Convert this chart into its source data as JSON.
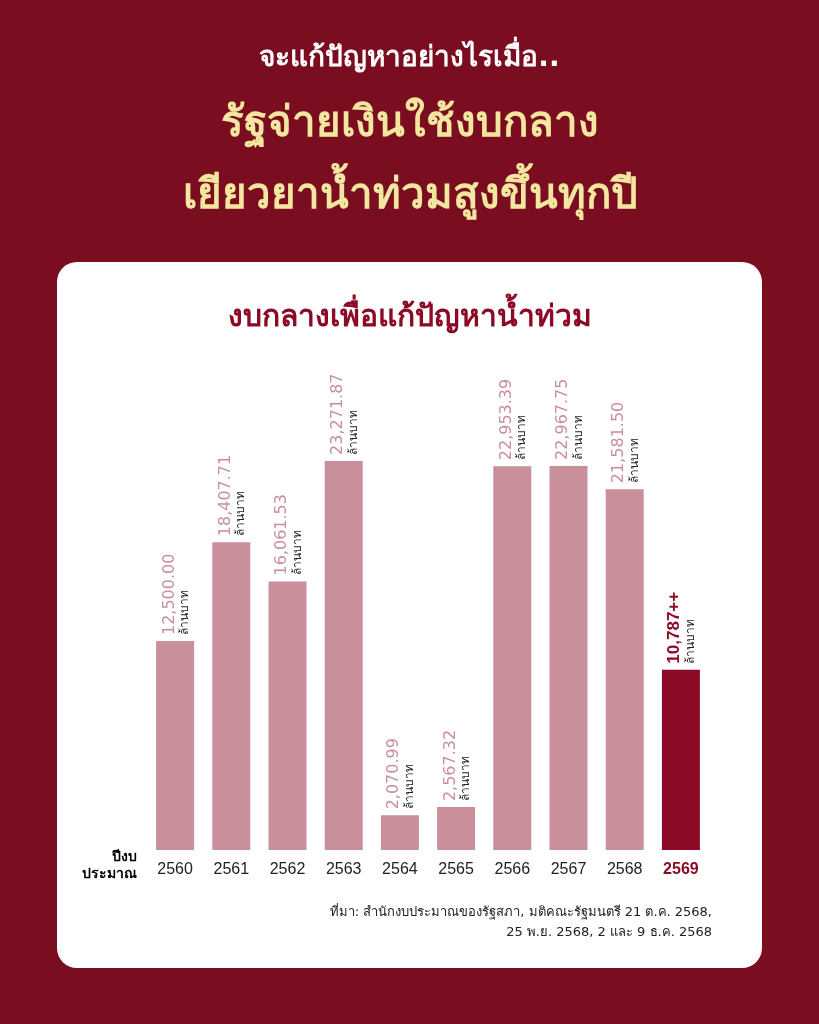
{
  "chart_data": {
    "type": "bar",
    "title": "จะแก้ปัญหาอย่างไรเมื่อ..",
    "subtitle": "รัฐจ่ายเงินใช้งบกลาง เยียวยาน้ำท่วมสูงขึ้นทุกปี",
    "xlabel": "ปีงบ ประมาณ",
    "annotations": [
      "งบกลางเพื่อแก้ปัญหาน้ำท่วม",
      "ที่มา: สำนักงบประมาณของรัฐสภา, มติคณะรัฐมนตรี 21 ต.ค. 2568, 25 พ.ย. 2568, 2 และ 9 ธ.ค. 2568"
    ],
    "categories": [
      "2560",
      "2561",
      "2562",
      "2563",
      "2564",
      "2565",
      "2566",
      "2567",
      "2568",
      "2569"
    ],
    "values": [
      12500,
      18407.71,
      16061.53,
      23271.87,
      2070.99,
      2567.32,
      22953.39,
      22967.75,
      21581.5,
      10787
    ],
    "value_labels": [
      "12,500.00 ล้านบาท",
      "18,407.71 ล้านบาท",
      "16,061.53 ล้านบาท",
      "23,271.87 ล้านบาท",
      "2,070.99 ล้านบาท",
      "2,567.32 ล้านบาท",
      "22,953.39 ล้านบาท",
      "22,967.75 ล้านบาท",
      "21,581.50 ล้านบาท",
      "10,787++ ล้านบาท"
    ],
    "colors": [
      "#c98f9a",
      "#c98f9a",
      "#c98f9a",
      "#c98f9a",
      "#c98f9a",
      "#c98f9a",
      "#c98f9a",
      "#c98f9a",
      "#c98f9a",
      "#8b0a25"
    ]
  }
}
